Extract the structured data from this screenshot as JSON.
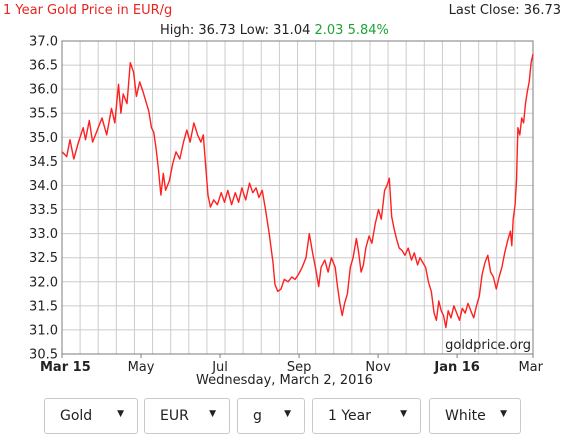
{
  "header": {
    "title": "1 Year Gold Price in EUR/g",
    "last_close": "Last Close: 36.73",
    "high_low": "High: 36.73 Low: 31.04",
    "change": "2.03 5.84%"
  },
  "date_text": "Wednesday, March 2, 2016",
  "watermark": "goldprice.org",
  "colors": {
    "line": "#ff1f1f",
    "title": "#e8241f",
    "change": "#1fa23a",
    "grid": "#cccccc"
  },
  "controls": [
    {
      "name": "metal-select",
      "value": "Gold"
    },
    {
      "name": "currency-select",
      "value": "EUR"
    },
    {
      "name": "unit-select",
      "value": "g"
    },
    {
      "name": "period-select",
      "value": "1 Year"
    },
    {
      "name": "theme-select",
      "value": "White"
    }
  ],
  "chart_data": {
    "type": "line",
    "title": "1 Year Gold Price in EUR/g",
    "x_range": [
      "Mar 15",
      "Mar 16"
    ],
    "ylim": [
      30.5,
      37.0
    ],
    "y_ticks": [
      "30.5",
      "31.0",
      "31.5",
      "32.0",
      "32.5",
      "33.0",
      "33.5",
      "34.0",
      "34.5",
      "35.0",
      "35.5",
      "36.0",
      "36.5",
      "37.0"
    ],
    "x_ticks": [
      {
        "label": "Mar 15",
        "t": 0.0,
        "bold": true
      },
      {
        "label": "May",
        "t": 0.1678
      },
      {
        "label": "Jul",
        "t": 0.3356
      },
      {
        "label": "Sep",
        "t": 0.5034
      },
      {
        "label": "Nov",
        "t": 0.6711
      },
      {
        "label": "Jan 16",
        "t": 0.8389,
        "bold": true
      },
      {
        "label": "Mar",
        "t": 1.0
      }
    ],
    "grid": true,
    "series": [
      {
        "values": [
          [
            0.0,
            34.7
          ],
          [
            0.01,
            34.6
          ],
          [
            0.017,
            34.95
          ],
          [
            0.025,
            34.55
          ],
          [
            0.035,
            34.9
          ],
          [
            0.045,
            35.2
          ],
          [
            0.05,
            34.95
          ],
          [
            0.058,
            35.35
          ],
          [
            0.065,
            34.9
          ],
          [
            0.075,
            35.15
          ],
          [
            0.085,
            35.4
          ],
          [
            0.095,
            35.05
          ],
          [
            0.105,
            35.6
          ],
          [
            0.112,
            35.3
          ],
          [
            0.12,
            36.1
          ],
          [
            0.125,
            35.5
          ],
          [
            0.13,
            35.9
          ],
          [
            0.138,
            35.7
          ],
          [
            0.145,
            36.55
          ],
          [
            0.152,
            36.35
          ],
          [
            0.158,
            35.85
          ],
          [
            0.165,
            36.15
          ],
          [
            0.172,
            35.95
          ],
          [
            0.178,
            35.75
          ],
          [
            0.184,
            35.55
          ],
          [
            0.19,
            35.2
          ],
          [
            0.195,
            35.1
          ],
          [
            0.2,
            34.75
          ],
          [
            0.205,
            34.3
          ],
          [
            0.21,
            33.8
          ],
          [
            0.215,
            34.25
          ],
          [
            0.22,
            33.9
          ],
          [
            0.228,
            34.1
          ],
          [
            0.235,
            34.45
          ],
          [
            0.242,
            34.7
          ],
          [
            0.25,
            34.55
          ],
          [
            0.258,
            34.9
          ],
          [
            0.265,
            35.15
          ],
          [
            0.272,
            34.9
          ],
          [
            0.28,
            35.3
          ],
          [
            0.288,
            35.05
          ],
          [
            0.295,
            34.9
          ],
          [
            0.3,
            35.05
          ],
          [
            0.305,
            34.4
          ],
          [
            0.31,
            33.8
          ],
          [
            0.315,
            33.55
          ],
          [
            0.322,
            33.7
          ],
          [
            0.33,
            33.6
          ],
          [
            0.338,
            33.85
          ],
          [
            0.345,
            33.65
          ],
          [
            0.352,
            33.9
          ],
          [
            0.36,
            33.6
          ],
          [
            0.368,
            33.85
          ],
          [
            0.375,
            33.65
          ],
          [
            0.382,
            33.95
          ],
          [
            0.39,
            33.7
          ],
          [
            0.398,
            34.05
          ],
          [
            0.405,
            33.85
          ],
          [
            0.412,
            33.95
          ],
          [
            0.418,
            33.75
          ],
          [
            0.425,
            33.9
          ],
          [
            0.432,
            33.5
          ],
          [
            0.44,
            33.0
          ],
          [
            0.448,
            32.4
          ],
          [
            0.452,
            31.95
          ],
          [
            0.458,
            31.8
          ],
          [
            0.465,
            31.85
          ],
          [
            0.472,
            32.05
          ],
          [
            0.48,
            32.0
          ],
          [
            0.488,
            32.1
          ],
          [
            0.495,
            32.05
          ],
          [
            0.502,
            32.15
          ],
          [
            0.51,
            32.3
          ],
          [
            0.518,
            32.5
          ],
          [
            0.525,
            33.0
          ],
          [
            0.532,
            32.6
          ],
          [
            0.538,
            32.3
          ],
          [
            0.545,
            31.9
          ],
          [
            0.55,
            32.3
          ],
          [
            0.558,
            32.45
          ],
          [
            0.565,
            32.2
          ],
          [
            0.572,
            32.5
          ],
          [
            0.58,
            32.3
          ],
          [
            0.585,
            31.9
          ],
          [
            0.59,
            31.55
          ],
          [
            0.595,
            31.3
          ],
          [
            0.6,
            31.55
          ],
          [
            0.606,
            31.75
          ],
          [
            0.612,
            32.3
          ],
          [
            0.618,
            32.5
          ],
          [
            0.625,
            32.9
          ],
          [
            0.63,
            32.6
          ],
          [
            0.635,
            32.2
          ],
          [
            0.64,
            32.35
          ],
          [
            0.645,
            32.7
          ],
          [
            0.652,
            32.95
          ],
          [
            0.658,
            32.8
          ],
          [
            0.665,
            33.2
          ],
          [
            0.672,
            33.5
          ],
          [
            0.678,
            33.3
          ],
          [
            0.685,
            33.9
          ],
          [
            0.69,
            34.0
          ],
          [
            0.695,
            34.15
          ],
          [
            0.7,
            33.35
          ],
          [
            0.705,
            33.1
          ],
          [
            0.71,
            32.9
          ],
          [
            0.716,
            32.7
          ],
          [
            0.722,
            32.65
          ],
          [
            0.728,
            32.55
          ],
          [
            0.735,
            32.7
          ],
          [
            0.742,
            32.45
          ],
          [
            0.748,
            32.6
          ],
          [
            0.755,
            32.35
          ],
          [
            0.76,
            32.5
          ],
          [
            0.766,
            32.4
          ],
          [
            0.772,
            32.3
          ],
          [
            0.778,
            32.0
          ],
          [
            0.784,
            31.8
          ],
          [
            0.79,
            31.35
          ],
          [
            0.795,
            31.2
          ],
          [
            0.8,
            31.6
          ],
          [
            0.805,
            31.4
          ],
          [
            0.81,
            31.3
          ],
          [
            0.815,
            31.05
          ],
          [
            0.82,
            31.4
          ],
          [
            0.826,
            31.25
          ],
          [
            0.832,
            31.5
          ],
          [
            0.838,
            31.35
          ],
          [
            0.844,
            31.2
          ],
          [
            0.85,
            31.45
          ],
          [
            0.856,
            31.35
          ],
          [
            0.862,
            31.55
          ],
          [
            0.868,
            31.4
          ],
          [
            0.874,
            31.25
          ],
          [
            0.88,
            31.5
          ],
          [
            0.886,
            31.7
          ],
          [
            0.892,
            32.15
          ],
          [
            0.898,
            32.4
          ],
          [
            0.904,
            32.55
          ],
          [
            0.91,
            32.2
          ],
          [
            0.916,
            32.1
          ],
          [
            0.922,
            31.85
          ],
          [
            0.928,
            32.1
          ],
          [
            0.934,
            32.3
          ],
          [
            0.94,
            32.6
          ],
          [
            0.946,
            32.85
          ],
          [
            0.952,
            33.05
          ],
          [
            0.955,
            32.75
          ],
          [
            0.958,
            33.3
          ],
          [
            0.962,
            33.6
          ],
          [
            0.965,
            34.1
          ],
          [
            0.968,
            35.2
          ],
          [
            0.972,
            35.05
          ],
          [
            0.976,
            35.4
          ],
          [
            0.98,
            35.3
          ],
          [
            0.984,
            35.7
          ],
          [
            0.988,
            35.95
          ],
          [
            0.992,
            36.15
          ],
          [
            0.996,
            36.55
          ],
          [
            1.0,
            36.73
          ]
        ]
      }
    ]
  }
}
